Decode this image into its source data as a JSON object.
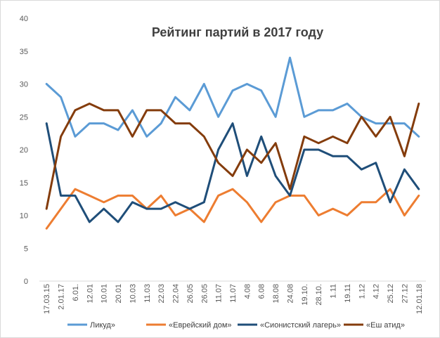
{
  "chart_data": {
    "type": "line",
    "title": "Рейтинг партий в 2017 году",
    "xlabel": "",
    "ylabel": "",
    "ylim": [
      0,
      40
    ],
    "yticks": [
      0,
      5,
      10,
      15,
      20,
      25,
      30,
      35,
      40
    ],
    "grid": false,
    "legend_position": "bottom",
    "categories": [
      "17.03.15",
      "2.01.17",
      "6.01.",
      "12.01",
      "10.01",
      "20.01",
      "10.03",
      "11.03",
      "22.03",
      "22.04",
      "26.05",
      "26.05",
      "11.07",
      "11.07",
      "4.08",
      "6.08",
      "18.08",
      "24.08",
      "19.10.",
      "28.10.",
      "1.11",
      "19.11",
      "1.12",
      "4.12",
      "25.12",
      "27.12",
      "12.01.18"
    ],
    "series": [
      {
        "name": "Ликуд»",
        "color": "#5b9bd5",
        "values": [
          30,
          28,
          22,
          24,
          24,
          23,
          26,
          22,
          24,
          28,
          26,
          30,
          25,
          29,
          30,
          29,
          25,
          34,
          25,
          26,
          26,
          27,
          25,
          24,
          24,
          24,
          22
        ]
      },
      {
        "name": "«Еврейский дом»",
        "color": "#ed7d31",
        "values": [
          8,
          11,
          14,
          13,
          12,
          13,
          13,
          11,
          13,
          10,
          11,
          9,
          13,
          14,
          12,
          9,
          12,
          13,
          13,
          10,
          11,
          10,
          12,
          12,
          14,
          10,
          13
        ]
      },
      {
        "name": "«Сионистский лагерь»",
        "color": "#1f4e79",
        "values": [
          24,
          13,
          13,
          9,
          11,
          9,
          12,
          11,
          11,
          12,
          11,
          12,
          20,
          24,
          16,
          22,
          16,
          13,
          20,
          20,
          19,
          19,
          17,
          18,
          12,
          17,
          14
        ]
      },
      {
        "name": "«Еш атид»",
        "color": "#843c0c",
        "values": [
          11,
          22,
          26,
          27,
          26,
          26,
          22,
          26,
          26,
          24,
          24,
          22,
          18,
          16,
          20,
          18,
          21,
          14,
          22,
          21,
          22,
          21,
          25,
          22,
          25,
          19,
          27
        ]
      }
    ]
  }
}
